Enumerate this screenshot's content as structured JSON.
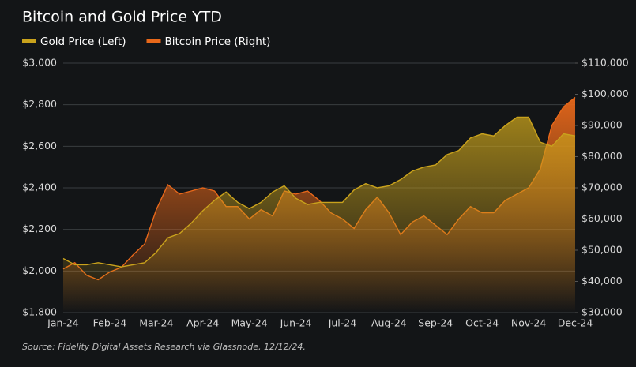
{
  "chart_data": {
    "type": "area",
    "title": "Bitcoin and Gold Price YTD",
    "footnote": "Source: Fidelity Digital Assets Research via Glassnode, 12/12/24.",
    "categories": [
      "Jan-24",
      null,
      null,
      null,
      "Feb-24",
      null,
      null,
      null,
      "Mar-24",
      null,
      null,
      null,
      "Apr-24",
      null,
      null,
      null,
      "May-24",
      null,
      null,
      null,
      "Jun-24",
      null,
      null,
      null,
      "Jul-24",
      null,
      null,
      null,
      "Aug-24",
      null,
      null,
      null,
      "Sep-24",
      null,
      null,
      null,
      "Oct-24",
      null,
      null,
      null,
      "Nov-24",
      null,
      null,
      null,
      "Dec-24"
    ],
    "series": [
      {
        "name": "Gold Price (Left)",
        "color": "#c9a21c",
        "axis": "y",
        "values": [
          2060,
          2030,
          2030,
          2040,
          2030,
          2020,
          2030,
          2040,
          2090,
          2160,
          2180,
          2230,
          2290,
          2340,
          2380,
          2330,
          2300,
          2330,
          2380,
          2410,
          2350,
          2320,
          2330,
          2330,
          2330,
          2390,
          2420,
          2400,
          2410,
          2440,
          2480,
          2500,
          2510,
          2560,
          2580,
          2640,
          2660,
          2650,
          2700,
          2740,
          2740,
          2620,
          2600,
          2660,
          2650
        ]
      },
      {
        "name": "Bitcoin Price (Right)",
        "color": "#e8681a",
        "axis": "y2",
        "values": [
          44000,
          46000,
          42000,
          40500,
          43000,
          44500,
          48500,
          52000,
          63000,
          71000,
          68000,
          69000,
          70000,
          69000,
          64000,
          64000,
          60000,
          63000,
          61000,
          69000,
          68000,
          69000,
          66000,
          62000,
          60000,
          57000,
          63000,
          67000,
          62000,
          55000,
          59000,
          61000,
          58000,
          55000,
          60000,
          64000,
          62000,
          62000,
          66000,
          68000,
          70000,
          76000,
          90000,
          96000,
          99000
        ]
      }
    ],
    "ylim": [
      1800,
      3000
    ],
    "yticks": [
      {
        "value": 1800,
        "label": "$1,800"
      },
      {
        "value": 2000,
        "label": "$2,000"
      },
      {
        "value": 2200,
        "label": "$2,200"
      },
      {
        "value": 2400,
        "label": "$2,400"
      },
      {
        "value": 2600,
        "label": "$2,600"
      },
      {
        "value": 2800,
        "label": "$2,800"
      },
      {
        "value": 3000,
        "label": "$3,000"
      }
    ],
    "y2lim": [
      30000,
      110000
    ],
    "y2ticks": [
      {
        "value": 30000,
        "label": "$30,000"
      },
      {
        "value": 40000,
        "label": "$40,000"
      },
      {
        "value": 50000,
        "label": "$50,000"
      },
      {
        "value": 60000,
        "label": "$60,000"
      },
      {
        "value": 70000,
        "label": "$70,000"
      },
      {
        "value": 80000,
        "label": "$80,000"
      },
      {
        "value": 90000,
        "label": "$90,000"
      },
      {
        "value": 100000,
        "label": "$100,000"
      },
      {
        "value": 110000,
        "label": "$110,000"
      }
    ],
    "grid": true,
    "legend": "top-left"
  }
}
